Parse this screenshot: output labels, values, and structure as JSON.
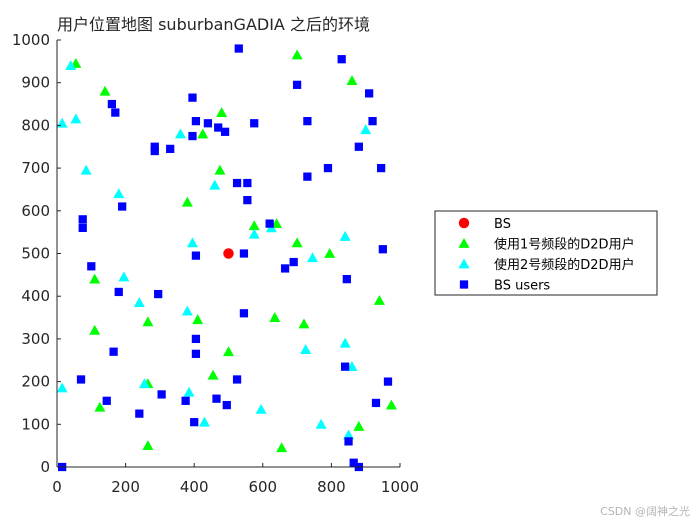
{
  "watermark": "CSDN @阔神之光",
  "chart_data": {
    "type": "scatter",
    "title": "用户位置地图 suburbanGADIA 之后的环境",
    "xlabel": "",
    "ylabel": "",
    "xlim": [
      0,
      1000
    ],
    "ylim": [
      0,
      1000
    ],
    "xticks": [
      0,
      200,
      400,
      600,
      800,
      1000
    ],
    "yticks": [
      0,
      100,
      200,
      300,
      400,
      500,
      600,
      700,
      800,
      900,
      1000
    ],
    "grid": false,
    "legend_position": "right",
    "series": [
      {
        "name": "BS",
        "color": "#ff0000",
        "marker": "circle",
        "points": [
          [
            500,
            500
          ]
        ]
      },
      {
        "name": "使用1号频段的D2D用户",
        "color": "#00ff00",
        "marker": "triangle",
        "points": [
          [
            55,
            945
          ],
          [
            140,
            880
          ],
          [
            480,
            830
          ],
          [
            425,
            780
          ],
          [
            475,
            695
          ],
          [
            380,
            620
          ],
          [
            575,
            565
          ],
          [
            640,
            570
          ],
          [
            700,
            525
          ],
          [
            795,
            500
          ],
          [
            110,
            440
          ],
          [
            110,
            320
          ],
          [
            265,
            340
          ],
          [
            410,
            345
          ],
          [
            635,
            350
          ],
          [
            720,
            335
          ],
          [
            940,
            390
          ],
          [
            860,
            905
          ],
          [
            700,
            965
          ],
          [
            500,
            270
          ],
          [
            455,
            215
          ],
          [
            265,
            195
          ],
          [
            125,
            140
          ],
          [
            265,
            50
          ],
          [
            655,
            45
          ],
          [
            880,
            95
          ],
          [
            975,
            145
          ]
        ]
      },
      {
        "name": "使用2号频段的D2D用户",
        "color": "#00ffff",
        "marker": "triangle",
        "points": [
          [
            40,
            940
          ],
          [
            15,
            805
          ],
          [
            55,
            815
          ],
          [
            85,
            695
          ],
          [
            180,
            640
          ],
          [
            360,
            780
          ],
          [
            460,
            660
          ],
          [
            395,
            525
          ],
          [
            575,
            545
          ],
          [
            625,
            560
          ],
          [
            745,
            490
          ],
          [
            840,
            540
          ],
          [
            195,
            445
          ],
          [
            240,
            385
          ],
          [
            380,
            365
          ],
          [
            725,
            275
          ],
          [
            840,
            290
          ],
          [
            860,
            235
          ],
          [
            15,
            185
          ],
          [
            255,
            195
          ],
          [
            385,
            175
          ],
          [
            430,
            105
          ],
          [
            595,
            135
          ],
          [
            770,
            100
          ],
          [
            850,
            75
          ],
          [
            900,
            790
          ]
        ]
      },
      {
        "name": "BS users",
        "color": "#0000ff",
        "marker": "square",
        "points": [
          [
            530,
            980
          ],
          [
            830,
            955
          ],
          [
            700,
            895
          ],
          [
            910,
            875
          ],
          [
            395,
            865
          ],
          [
            160,
            850
          ],
          [
            170,
            830
          ],
          [
            405,
            810
          ],
          [
            440,
            805
          ],
          [
            470,
            795
          ],
          [
            490,
            785
          ],
          [
            395,
            775
          ],
          [
            575,
            805
          ],
          [
            730,
            810
          ],
          [
            920,
            810
          ],
          [
            285,
            750
          ],
          [
            285,
            740
          ],
          [
            330,
            745
          ],
          [
            880,
            750
          ],
          [
            790,
            700
          ],
          [
            945,
            700
          ],
          [
            730,
            680
          ],
          [
            525,
            665
          ],
          [
            555,
            665
          ],
          [
            555,
            625
          ],
          [
            190,
            610
          ],
          [
            75,
            580
          ],
          [
            75,
            560
          ],
          [
            620,
            570
          ],
          [
            405,
            495
          ],
          [
            545,
            500
          ],
          [
            690,
            480
          ],
          [
            665,
            465
          ],
          [
            950,
            510
          ],
          [
            100,
            470
          ],
          [
            180,
            410
          ],
          [
            295,
            405
          ],
          [
            845,
            440
          ],
          [
            405,
            300
          ],
          [
            405,
            265
          ],
          [
            545,
            360
          ],
          [
            165,
            270
          ],
          [
            70,
            205
          ],
          [
            525,
            205
          ],
          [
            965,
            200
          ],
          [
            305,
            170
          ],
          [
            375,
            155
          ],
          [
            465,
            160
          ],
          [
            495,
            145
          ],
          [
            145,
            155
          ],
          [
            240,
            125
          ],
          [
            400,
            105
          ],
          [
            930,
            150
          ],
          [
            850,
            60
          ],
          [
            865,
            10
          ],
          [
            880,
            0
          ],
          [
            15,
            0
          ],
          [
            840,
            235
          ]
        ]
      }
    ]
  }
}
